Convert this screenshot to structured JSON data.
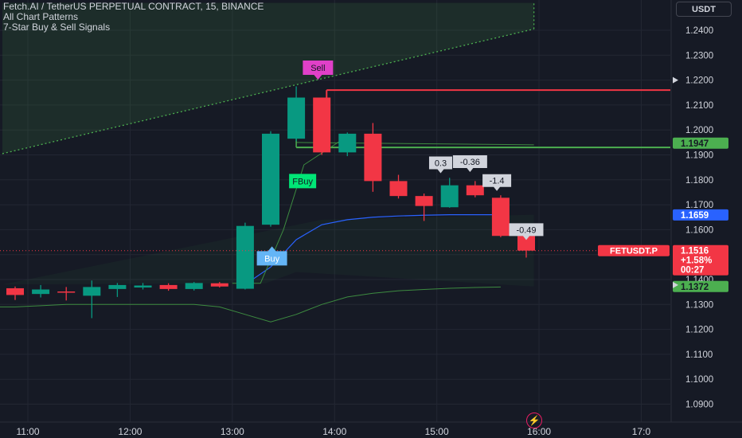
{
  "legend": {
    "title": "Fetch.AI / TetherUS PERPETUAL CONTRACT, 15, BINANCE",
    "indicator_1": "All Chart Patterns",
    "indicator_2": "7-Star Buy & Sell Signals"
  },
  "currency_label": "USDT",
  "colors": {
    "up": "#089981",
    "down": "#f23645",
    "grid": "#232733",
    "text": "#d1d4dc",
    "blue_line": "#2962ff",
    "green_line": "#4caf50",
    "sell_tag": "#e040c8",
    "buy_tag": "#64b5f6",
    "fbuy_tag": "#00e676"
  },
  "chart_data": {
    "type": "candlestick",
    "symbol": "FETUSDT.P",
    "interval": "15",
    "y_ticks": [
      "1.2400",
      "1.2300",
      "1.2200",
      "1.2100",
      "1.2000",
      "1.1900",
      "1.1800",
      "1.1700",
      "1.1600",
      "1.1500",
      "1.1400",
      "1.1300",
      "1.1200",
      "1.1100",
      "1.1000",
      "1.0900"
    ],
    "x_ticks": [
      {
        "label": "11:00",
        "t": 0.5
      },
      {
        "label": "12:00",
        "t": 4.5
      },
      {
        "label": "13:00",
        "t": 8.5
      },
      {
        "label": "14:00",
        "t": 12.5
      },
      {
        "label": "15:00",
        "t": 16.5
      },
      {
        "label": "16:00",
        "t": 20.5
      },
      {
        "label": "17:0",
        "t": 24.5
      }
    ],
    "ylim": [
      1.0845,
      1.251
    ],
    "candles": [
      {
        "o": 1.1365,
        "h": 1.1372,
        "l": 1.1318,
        "c": 1.1338
      },
      {
        "o": 1.1342,
        "h": 1.1378,
        "l": 1.1328,
        "c": 1.136
      },
      {
        "o": 1.1352,
        "h": 1.137,
        "l": 1.1316,
        "c": 1.1348
      },
      {
        "o": 1.1335,
        "h": 1.1396,
        "l": 1.1245,
        "c": 1.137
      },
      {
        "o": 1.1362,
        "h": 1.1386,
        "l": 1.133,
        "c": 1.1378
      },
      {
        "o": 1.1368,
        "h": 1.1386,
        "l": 1.136,
        "c": 1.1376
      },
      {
        "o": 1.1378,
        "h": 1.1385,
        "l": 1.1355,
        "c": 1.1362
      },
      {
        "o": 1.1362,
        "h": 1.139,
        "l": 1.1356,
        "c": 1.1386
      },
      {
        "o": 1.1385,
        "h": 1.139,
        "l": 1.1368,
        "c": 1.1372
      },
      {
        "o": 1.1363,
        "h": 1.1628,
        "l": 1.136,
        "c": 1.1615
      },
      {
        "o": 1.162,
        "h": 1.1995,
        "l": 1.1612,
        "c": 1.1985
      },
      {
        "o": 1.1965,
        "h": 1.2175,
        "l": 1.1955,
        "c": 1.213
      },
      {
        "o": 1.213,
        "h": 1.213,
        "l": 1.19,
        "c": 1.191
      },
      {
        "o": 1.191,
        "h": 1.199,
        "l": 1.1895,
        "c": 1.1985
      },
      {
        "o": 1.1985,
        "h": 1.2028,
        "l": 1.1752,
        "c": 1.1795
      },
      {
        "o": 1.1795,
        "h": 1.182,
        "l": 1.1725,
        "c": 1.1735
      },
      {
        "o": 1.1735,
        "h": 1.1745,
        "l": 1.1635,
        "c": 1.1695
      },
      {
        "o": 1.169,
        "h": 1.1808,
        "l": 1.1688,
        "c": 1.1778
      },
      {
        "o": 1.1778,
        "h": 1.1795,
        "l": 1.173,
        "c": 1.1738
      },
      {
        "o": 1.1728,
        "h": 1.1738,
        "l": 1.157,
        "c": 1.1575
      },
      {
        "o": 1.1575,
        "h": 1.1575,
        "l": 1.1488,
        "c": 1.1516
      }
    ],
    "blue_line": [
      null,
      null,
      null,
      null,
      null,
      null,
      null,
      null,
      null,
      1.138,
      1.145,
      1.156,
      1.162,
      1.164,
      1.165,
      1.1655,
      1.1658,
      1.166,
      1.166,
      1.166
    ],
    "green_line": [
      1.129,
      1.1295,
      1.13,
      1.13,
      1.13,
      1.13,
      1.13,
      1.13,
      1.129,
      1.126,
      1.123,
      1.126,
      1.13,
      1.133,
      1.1345,
      1.1355,
      1.136,
      1.1365,
      1.1368,
      1.137
    ],
    "triangle_upper": [
      {
        "t": -0.5,
        "p": 1.1905
      },
      {
        "t": 20.3,
        "p": 1.2405
      }
    ],
    "triangle_top_right": [
      {
        "t": 20.3,
        "p": 1.2405
      },
      {
        "t": 20.3,
        "p": 1.251
      }
    ],
    "triangle_lower": [
      {
        "t": -0.5,
        "p": 1.138
      },
      {
        "t": 9.8,
        "p": 1.1385
      }
    ],
    "resistance_line": {
      "t1": 12.5,
      "t2": 25.0,
      "p": 1.216
    },
    "support_line": {
      "t1": 11.0,
      "t2": 25.0,
      "p": 1.193
    },
    "mid_line": {
      "t1": 11.0,
      "t2": 20.3,
      "p": 1.195
    },
    "signals": [
      {
        "label": "Sell",
        "t": 11.85,
        "p": 1.225,
        "kind": "sell"
      },
      {
        "label": "FBuy",
        "t": 11.25,
        "p": 1.1795,
        "kind": "fbuy"
      },
      {
        "label": "Buy",
        "t": 10.05,
        "p": 1.1485,
        "kind": "buy"
      }
    ],
    "pnl_labels": [
      {
        "label": "0.3",
        "t": 16.65,
        "p": 1.1868
      },
      {
        "label": "-0.36",
        "t": 17.8,
        "p": 1.1873
      },
      {
        "label": "-1.4",
        "t": 18.85,
        "p": 1.1797
      },
      {
        "label": "-0.49",
        "t": 20.0,
        "p": 1.16
      }
    ],
    "price_badges": [
      {
        "label": "1.1947",
        "p": 1.1947,
        "color": "#4caf50",
        "text_color": "#161a25"
      },
      {
        "label": "1.1659",
        "p": 1.1659,
        "color": "#2962ff",
        "text_color": "#ffffff"
      },
      {
        "label": "1.1372",
        "p": 1.1372,
        "color": "#4caf50",
        "text_color": "#161a25"
      }
    ],
    "last_price": {
      "p": 1.1516,
      "price": "1.1516",
      "change": "+1.58%",
      "countdown": "00:27",
      "symbol_label": "FETUSDT.P"
    }
  }
}
